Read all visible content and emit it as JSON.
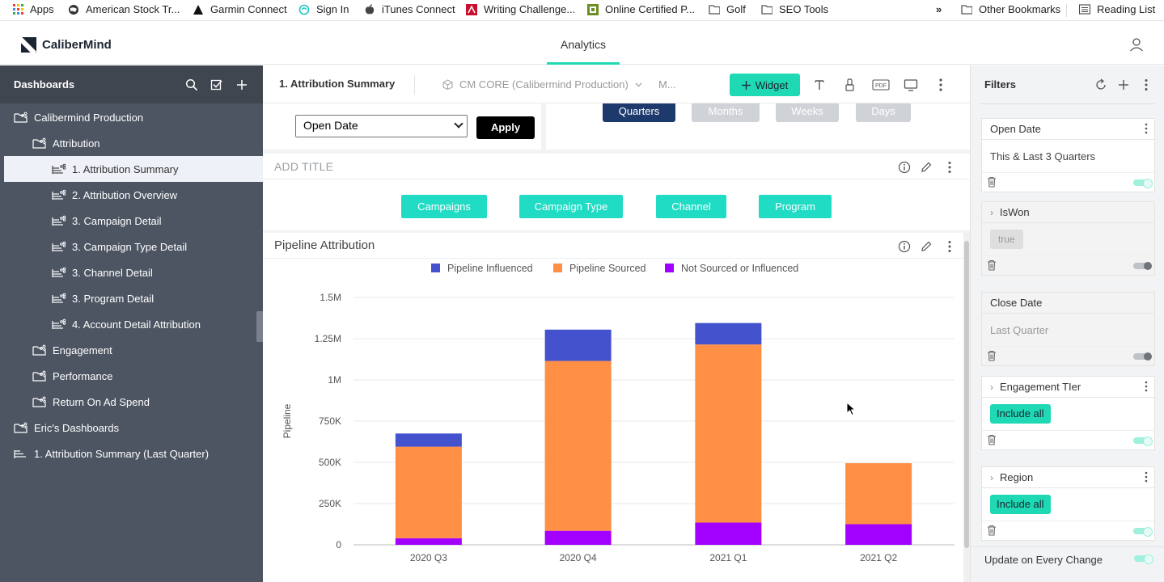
{
  "bookmarks": {
    "items": [
      {
        "label": "Apps",
        "icon": "apps-grid-icon"
      },
      {
        "label": "American Stock Tr...",
        "icon": "globe-icon"
      },
      {
        "label": "Garmin Connect",
        "icon": "garmin-triangle-icon"
      },
      {
        "label": "Sign In",
        "icon": "swirl-icon"
      },
      {
        "label": "iTunes Connect",
        "icon": "apple-icon"
      },
      {
        "label": "Writing Challenge...",
        "icon": "writing-challenge-icon"
      },
      {
        "label": "Online Certified P...",
        "icon": "certified-icon"
      },
      {
        "label": "Golf",
        "icon": "folder-icon"
      },
      {
        "label": "SEO Tools",
        "icon": "folder-icon"
      }
    ],
    "overflow": "»",
    "other": "Other Bookmarks",
    "reading_list": "Reading List"
  },
  "app": {
    "brand": "CaliberMind",
    "nav_tab": "Analytics"
  },
  "sidebar": {
    "title": "Dashboards",
    "items": [
      {
        "label": "Calibermind Production",
        "level": 0,
        "icon": "folder-share-icon"
      },
      {
        "label": "Attribution",
        "level": 1,
        "icon": "folder-share-icon"
      },
      {
        "label": "1. Attribution Summary",
        "level": 2,
        "icon": "dashboard-share-icon",
        "active": true
      },
      {
        "label": "2. Attribution Overview",
        "level": 2,
        "icon": "dashboard-share-icon"
      },
      {
        "label": "3. Campaign Detail",
        "level": 2,
        "icon": "dashboard-share-icon"
      },
      {
        "label": "3. Campaign Type Detail",
        "level": 2,
        "icon": "dashboard-share-icon"
      },
      {
        "label": "3. Channel Detail",
        "level": 2,
        "icon": "dashboard-share-icon"
      },
      {
        "label": "3. Program Detail",
        "level": 2,
        "icon": "dashboard-share-icon"
      },
      {
        "label": "4. Account Detail Attribution",
        "level": 2,
        "icon": "dashboard-share-icon"
      },
      {
        "label": "Engagement",
        "level": 1,
        "icon": "folder-share-icon"
      },
      {
        "label": "Performance",
        "level": 1,
        "icon": "folder-share-icon"
      },
      {
        "label": "Return On Ad Spend",
        "level": 1,
        "icon": "folder-share-icon"
      },
      {
        "label": "Eric's Dashboards",
        "level": 0,
        "icon": "folder-share-icon"
      },
      {
        "label": "1. Attribution Summary (Last Quarter)",
        "level": 0,
        "icon": "dashboard-icon"
      }
    ]
  },
  "toolbar": {
    "title": "1. Attribution Summary",
    "datasource": "CM CORE (Calibermind Production)",
    "more": "M...",
    "widget_label": "Widget",
    "pdf_label": "PDF"
  },
  "filter_widget": {
    "select_value": "Open Date",
    "apply_label": "Apply",
    "granularity": [
      "Quarters",
      "Months",
      "Weeks",
      "Days"
    ],
    "selected": "Quarters"
  },
  "tabs_widget": {
    "title": "ADD TITLE",
    "buttons": [
      "Campaigns",
      "Campaign Type",
      "Channel",
      "Program"
    ]
  },
  "chart_widget": {
    "title": "Pipeline Attribution"
  },
  "chart_data": {
    "type": "bar",
    "stacked": true,
    "categories": [
      "2020 Q3",
      "2020 Q4",
      "2021 Q1",
      "2021 Q2"
    ],
    "series": [
      {
        "name": "Not Sourced or Influenced",
        "color": "#a200ff",
        "values": [
          40000,
          85000,
          135000,
          125000
        ]
      },
      {
        "name": "Pipeline Sourced",
        "color": "#ff8f45",
        "values": [
          555000,
          1030000,
          1080000,
          370000
        ]
      },
      {
        "name": "Pipeline Influenced",
        "color": "#4452cd",
        "values": [
          80000,
          190000,
          130000,
          0
        ]
      }
    ],
    "legend_order": [
      "Pipeline Influenced",
      "Pipeline Sourced",
      "Not Sourced or Influenced"
    ],
    "legend_colors": [
      "#4452cd",
      "#ff8f45",
      "#a200ff"
    ],
    "ylabel": "Pipeline",
    "ylim": [
      0,
      1500000
    ],
    "yticks": [
      0,
      250000,
      500000,
      750000,
      1000000,
      1250000,
      1500000
    ],
    "ytick_labels": [
      "0",
      "250K",
      "500K",
      "750K",
      "1M",
      "1.25M",
      "1.5M"
    ],
    "grid": true,
    "legend_position": "top"
  },
  "filters": {
    "title": "Filters",
    "cards": [
      {
        "name": "Open Date",
        "value": "This & Last 3 Quarters",
        "kind": "text",
        "enabled": true,
        "expandable": false
      },
      {
        "name": "IsWon",
        "value": "true",
        "kind": "chip",
        "enabled": false,
        "expandable": true
      },
      {
        "name": "Close Date",
        "value": "Last Quarter",
        "kind": "muted",
        "enabled": false,
        "expandable": false
      },
      {
        "name": "Engagement TIer",
        "value": "Include all",
        "kind": "include",
        "enabled": true,
        "expandable": true
      },
      {
        "name": "Region",
        "value": "Include all",
        "kind": "include",
        "enabled": true,
        "expandable": true
      }
    ],
    "update_label": "Update on Every Change"
  }
}
